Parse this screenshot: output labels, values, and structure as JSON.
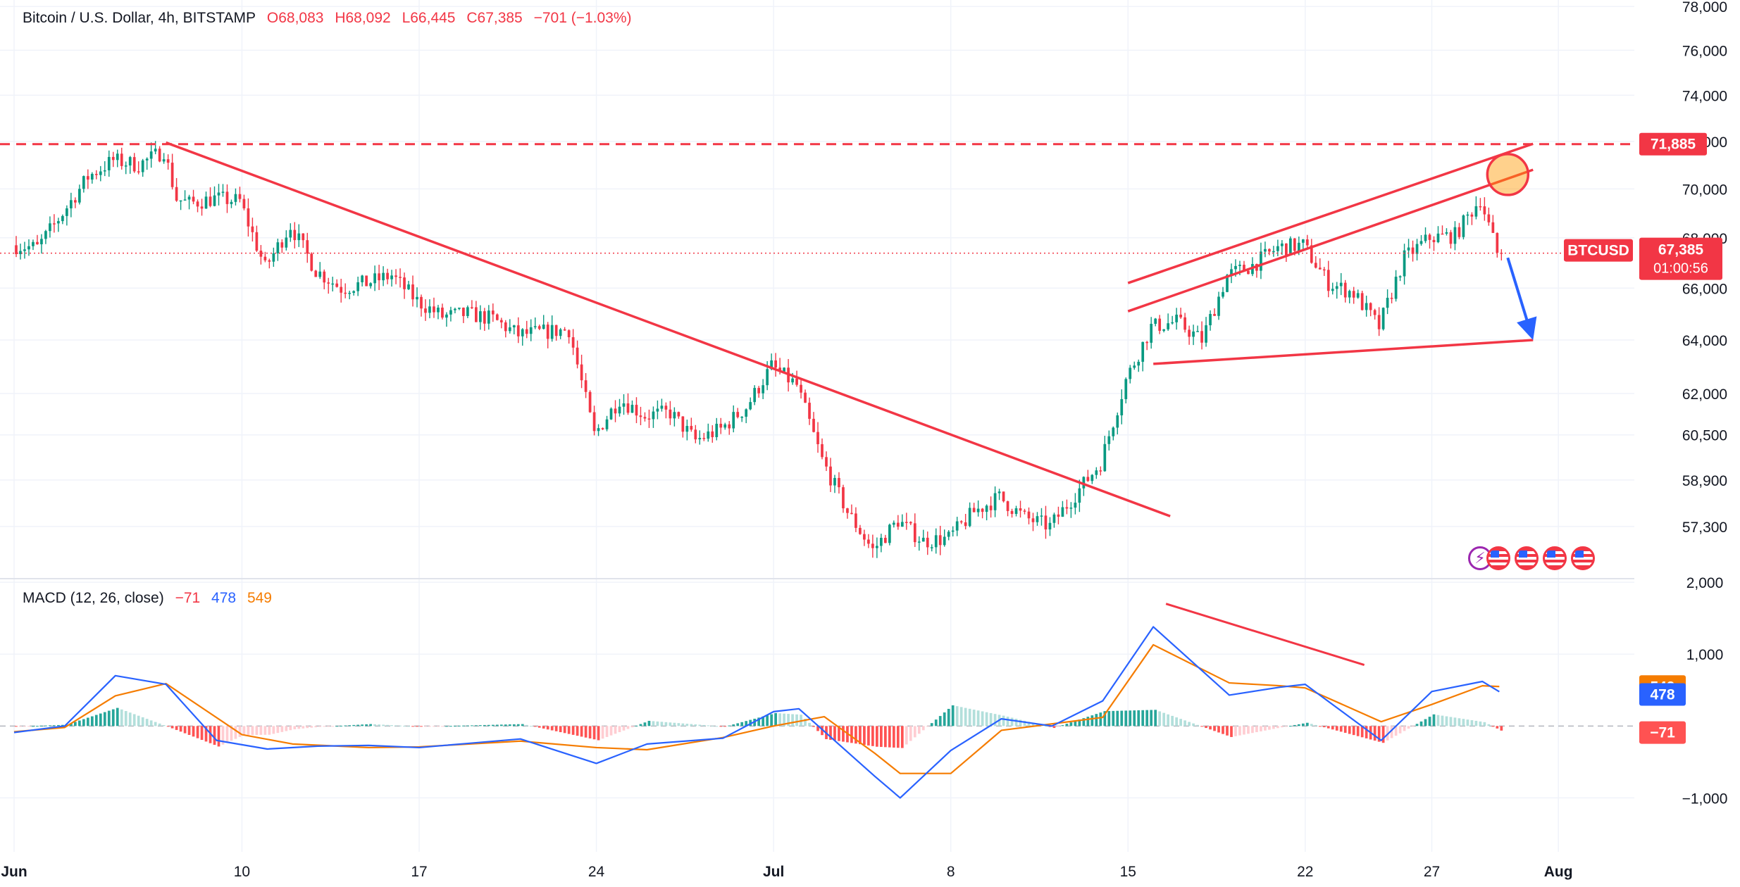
{
  "header": {
    "symbol_title": "Bitcoin / U.S. Dollar, 4h, BITSTAMP",
    "open": "O68,083",
    "high": "H68,092",
    "low": "L66,445",
    "close": "C67,385",
    "change": "−701 (−1.03%)"
  },
  "macd_legend": {
    "title": "MACD (12, 26, close)",
    "histogram": "−71",
    "macd": "478",
    "signal": "549"
  },
  "colors": {
    "up": "#089981",
    "down": "#f23645",
    "drawing": "#f23645",
    "arrow": "#2962ff",
    "macd_line": "#2962ff",
    "signal_line": "#f57c00",
    "hist_up": "#26a69a",
    "hist_up_weak": "#b2dfdb",
    "hist_down": "#ff5252",
    "hist_down_weak": "#ffcdd2"
  },
  "chart_data": {
    "type": "candlestick",
    "symbol": "BTCUSD",
    "interval": "4h",
    "exchange": "BITSTAMP",
    "x_range": [
      "2024-06-01",
      "2024-08-04"
    ],
    "y_scale": "log",
    "ylim": [
      55600,
      78300
    ],
    "y_ticks": [
      "78,000",
      "76,000",
      "74,000",
      "72,000",
      "70,000",
      "68,000",
      "66,000",
      "64,000",
      "62,000",
      "60,500",
      "58,900",
      "57,300"
    ],
    "x_ticks": [
      {
        "date": "2024-06-01",
        "label": "Jun",
        "bold": true
      },
      {
        "date": "2024-06-10",
        "label": "10",
        "bold": false
      },
      {
        "date": "2024-06-17",
        "label": "17",
        "bold": false
      },
      {
        "date": "2024-06-24",
        "label": "24",
        "bold": false
      },
      {
        "date": "2024-07-01",
        "label": "Jul",
        "bold": true
      },
      {
        "date": "2024-07-08",
        "label": "8",
        "bold": false
      },
      {
        "date": "2024-07-15",
        "label": "15",
        "bold": false
      },
      {
        "date": "2024-07-22",
        "label": "22",
        "bold": false
      },
      {
        "date": "2024-07-27",
        "label": "27",
        "bold": false
      },
      {
        "date": "2024-08-01",
        "label": "Aug",
        "bold": true
      }
    ],
    "price_path": [
      [
        "2024-06-01",
        67700
      ],
      [
        "2024-06-02",
        67600
      ],
      [
        "2024-06-03",
        69000
      ],
      [
        "2024-06-04",
        70500
      ],
      [
        "2024-06-05",
        71200
      ],
      [
        "2024-06-06",
        71000
      ],
      [
        "2024-06-07",
        71600
      ],
      [
        "2024-06-07T12:00",
        69600
      ],
      [
        "2024-06-08",
        69400
      ],
      [
        "2024-06-09",
        69600
      ],
      [
        "2024-06-10",
        69500
      ],
      [
        "2024-06-11",
        66800
      ],
      [
        "2024-06-12",
        68500
      ],
      [
        "2024-06-13",
        66700
      ],
      [
        "2024-06-14",
        66000
      ],
      [
        "2024-06-15",
        66200
      ],
      [
        "2024-06-16",
        66500
      ],
      [
        "2024-06-17",
        65500
      ],
      [
        "2024-06-18",
        64900
      ],
      [
        "2024-06-19",
        65000
      ],
      [
        "2024-06-20",
        64800
      ],
      [
        "2024-06-21",
        64200
      ],
      [
        "2024-06-22",
        64300
      ],
      [
        "2024-06-23",
        64400
      ],
      [
        "2024-06-24",
        60500
      ],
      [
        "2024-06-25",
        61800
      ],
      [
        "2024-06-26",
        61200
      ],
      [
        "2024-06-27",
        61300
      ],
      [
        "2024-06-28",
        60300
      ],
      [
        "2024-06-29",
        60700
      ],
      [
        "2024-06-30",
        61500
      ],
      [
        "2024-07-01",
        63000
      ],
      [
        "2024-07-02",
        62300
      ],
      [
        "2024-07-03",
        59600
      ],
      [
        "2024-07-04",
        57800
      ],
      [
        "2024-07-05",
        56500
      ],
      [
        "2024-07-06",
        57500
      ],
      [
        "2024-07-07",
        56800
      ],
      [
        "2024-07-08",
        56900
      ],
      [
        "2024-07-09",
        57800
      ],
      [
        "2024-07-10",
        58300
      ],
      [
        "2024-07-11",
        57600
      ],
      [
        "2024-07-12",
        57300
      ],
      [
        "2024-07-13",
        58400
      ],
      [
        "2024-07-14",
        59500
      ],
      [
        "2024-07-15",
        62500
      ],
      [
        "2024-07-16",
        64500
      ],
      [
        "2024-07-17",
        64700
      ],
      [
        "2024-07-18",
        64000
      ],
      [
        "2024-07-19",
        66500
      ],
      [
        "2024-07-20",
        66900
      ],
      [
        "2024-07-21",
        67600
      ],
      [
        "2024-07-22",
        67700
      ],
      [
        "2024-07-23",
        66200
      ],
      [
        "2024-07-24",
        65800
      ],
      [
        "2024-07-25",
        64500
      ],
      [
        "2024-07-26",
        67200
      ],
      [
        "2024-07-27",
        68000
      ],
      [
        "2024-07-28",
        68100
      ],
      [
        "2024-07-29",
        69600
      ],
      [
        "2024-07-29T16:00",
        67385
      ]
    ],
    "macd": {
      "title": "MACD (12, 26, close)",
      "ylim": [
        -1750,
        2050
      ],
      "y_ticks": [
        "2,000",
        "1,000",
        "−1,000"
      ],
      "macd_path": [
        [
          "2024-06-01",
          -90
        ],
        [
          "2024-06-03",
          0
        ],
        [
          "2024-06-05",
          700
        ],
        [
          "2024-06-07",
          580
        ],
        [
          "2024-06-09",
          -200
        ],
        [
          "2024-06-11",
          -320
        ],
        [
          "2024-06-13",
          -280
        ],
        [
          "2024-06-15",
          -270
        ],
        [
          "2024-06-17",
          -300
        ],
        [
          "2024-06-19",
          -240
        ],
        [
          "2024-06-21",
          -180
        ],
        [
          "2024-06-24",
          -520
        ],
        [
          "2024-06-26",
          -250
        ],
        [
          "2024-06-29",
          -170
        ],
        [
          "2024-07-01",
          200
        ],
        [
          "2024-07-02",
          240
        ],
        [
          "2024-07-05",
          -700
        ],
        [
          "2024-07-06",
          -1000
        ],
        [
          "2024-07-08",
          -340
        ],
        [
          "2024-07-10",
          100
        ],
        [
          "2024-07-12",
          0
        ],
        [
          "2024-07-14",
          350
        ],
        [
          "2024-07-16",
          1380
        ],
        [
          "2024-07-19",
          430
        ],
        [
          "2024-07-21",
          540
        ],
        [
          "2024-07-22",
          580
        ],
        [
          "2024-07-25",
          -200
        ],
        [
          "2024-07-27",
          480
        ],
        [
          "2024-07-29",
          620
        ],
        [
          "2024-07-29T16:00",
          478
        ]
      ],
      "signal_path": [
        [
          "2024-06-01",
          -80
        ],
        [
          "2024-06-03",
          -20
        ],
        [
          "2024-06-05",
          420
        ],
        [
          "2024-06-07",
          590
        ],
        [
          "2024-06-10",
          -120
        ],
        [
          "2024-06-12",
          -250
        ],
        [
          "2024-06-15",
          -300
        ],
        [
          "2024-06-17",
          -290
        ],
        [
          "2024-06-21",
          -210
        ],
        [
          "2024-06-24",
          -300
        ],
        [
          "2024-06-26",
          -330
        ],
        [
          "2024-06-29",
          -160
        ],
        [
          "2024-07-01",
          0
        ],
        [
          "2024-07-03",
          130
        ],
        [
          "2024-07-05",
          -380
        ],
        [
          "2024-07-06",
          -660
        ],
        [
          "2024-07-08",
          -660
        ],
        [
          "2024-07-10",
          -60
        ],
        [
          "2024-07-12",
          30
        ],
        [
          "2024-07-14",
          120
        ],
        [
          "2024-07-16",
          1130
        ],
        [
          "2024-07-19",
          600
        ],
        [
          "2024-07-21",
          560
        ],
        [
          "2024-07-22",
          530
        ],
        [
          "2024-07-25",
          60
        ],
        [
          "2024-07-27",
          300
        ],
        [
          "2024-07-29",
          560
        ],
        [
          "2024-07-29T16:00",
          549
        ]
      ]
    },
    "annotations": {
      "horizontal_resistance": 71885,
      "downtrend_line": [
        [
          "2024-06-07",
          71950
        ],
        [
          "2024-07-16T16:00",
          57650
        ]
      ],
      "channel_upper_outer": [
        [
          "2024-07-15",
          66200
        ],
        [
          "2024-07-31",
          71900
        ]
      ],
      "channel_upper_inner": [
        [
          "2024-07-15",
          65100
        ],
        [
          "2024-07-31",
          70800
        ]
      ],
      "channel_lower": [
        [
          "2024-07-16",
          63100
        ],
        [
          "2024-07-31",
          64000
        ]
      ],
      "circle_at": [
        "2024-07-30",
        70600
      ],
      "arrow": [
        [
          "2024-07-30",
          67200
        ],
        [
          "2024-07-31",
          64000
        ]
      ],
      "macd_divergence_line": [
        [
          "2024-07-16T12:00",
          1700
        ],
        [
          "2024-07-24T08:00",
          850
        ]
      ]
    }
  },
  "price_axis_labels": {
    "resistance": "71,885",
    "ticker": "BTCUSD",
    "last_price": "67,385",
    "countdown": "01:00:56",
    "macd_signal": "549",
    "macd_value": "478",
    "macd_hist": "−71"
  }
}
